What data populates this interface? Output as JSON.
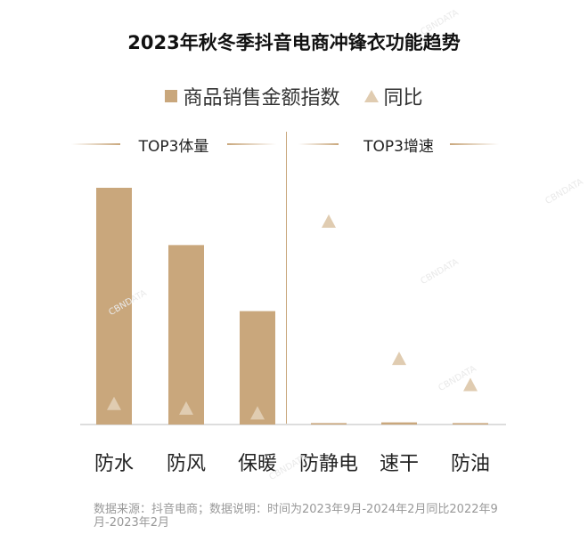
{
  "title": "2023年秋冬季抖音电商冲锋衣功能趋势",
  "legend": {
    "bar_label": "商品销售金额指数",
    "tri_label": "同比"
  },
  "sections": {
    "left": "TOP3体量",
    "right": "TOP3增速"
  },
  "source": "数据来源：抖音电商；数据说明：时间为2023年9月-2024年2月同比2022年9月-2023年2月",
  "watermark": "CBNDATA",
  "colors": {
    "bar": "#c9a77c",
    "triangle": "#e0ccb1",
    "axis": "#c9a77c"
  },
  "chart_data": {
    "type": "bar",
    "categories": [
      "防水",
      "防风",
      "保暖",
      "防静电",
      "速干",
      "防油"
    ],
    "series": [
      {
        "name": "商品销售金额指数",
        "values": [
          100,
          75.8,
          47.9,
          0.6,
          0.9,
          0.6
        ]
      },
      {
        "name": "同比",
        "values": [
          8,
          6,
          4,
          85,
          27,
          16
        ]
      }
    ],
    "groups": [
      "TOP3体量",
      "TOP3体量",
      "TOP3体量",
      "TOP3增速",
      "TOP3增速",
      "TOP3增速"
    ],
    "ylim": [
      0,
      100
    ],
    "grid": false,
    "legend_position": "top"
  }
}
